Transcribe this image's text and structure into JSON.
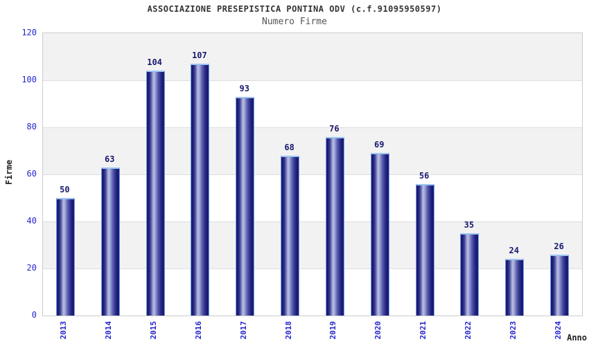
{
  "chart": {
    "title": "ASSOCIAZIONE PRESEPISTICA PONTINA ODV (c.f.91095950597)",
    "subtitle": "Numero Firme",
    "ylabel": "Firme",
    "xlabel": "Anno"
  },
  "chart_data": {
    "type": "bar",
    "title": "ASSOCIAZIONE PRESEPISTICA PONTINA ODV (c.f.91095950597)",
    "subtitle": "Numero Firme",
    "xlabel": "Anno",
    "ylabel": "Firme",
    "categories": [
      "2013",
      "2014",
      "2015",
      "2016",
      "2017",
      "2018",
      "2019",
      "2020",
      "2021",
      "2022",
      "2023",
      "2024"
    ],
    "values": [
      50,
      63,
      104,
      107,
      93,
      68,
      76,
      69,
      56,
      35,
      24,
      26
    ],
    "ylim": [
      0,
      120
    ],
    "yticks": [
      0,
      20,
      40,
      60,
      80,
      100,
      120
    ],
    "grid": "horizontal-bands",
    "legend": "none",
    "colors": {
      "bar_dark": "#191970",
      "bar_highlight": "#bcc1e3",
      "bar_border": "#6f9fe2",
      "bar_cap": "#9cc4f2",
      "tick_label": "#2525cf",
      "value_label": "#191970",
      "band_gray": "#f2f2f2",
      "band_white": "#ffffff",
      "gridline": "#dddddd",
      "plot_border": "#cccccc",
      "title_color": "#333333",
      "subtitle_color": "#555555"
    }
  }
}
